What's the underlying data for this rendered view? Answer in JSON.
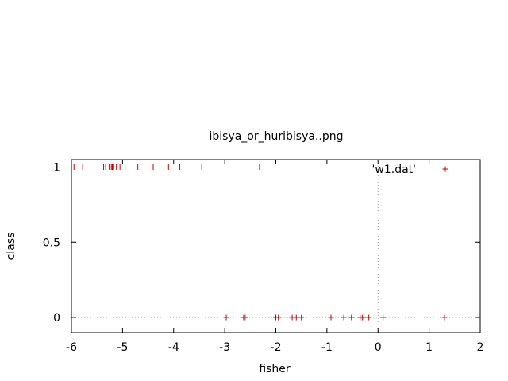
{
  "chart_data": {
    "type": "scatter",
    "title": "ibisya_or_huribisya..png",
    "xlabel": "fisher",
    "ylabel": "class",
    "xlim": [
      -6,
      2
    ],
    "ylim": [
      -0.1,
      1.05
    ],
    "xticks": [
      -6,
      -5,
      -4,
      -3,
      -2,
      -1,
      0,
      1,
      2
    ],
    "xtick_labels": [
      "-6",
      "-5",
      "-4",
      "-3",
      "-2",
      "-1",
      "0",
      "1",
      "2"
    ],
    "yticks": [
      0,
      0.5,
      1
    ],
    "ytick_labels": [
      "0",
      "0.5",
      "1"
    ],
    "grid": false,
    "zero_axes_dotted": true,
    "legend_position": "top-right",
    "colors": {
      "series": "#cc0000",
      "zero_axis": "#a0a0a0"
    },
    "series": [
      {
        "name": "'w1.dat'",
        "marker": "plus",
        "points": [
          [
            -5.95,
            1
          ],
          [
            -5.78,
            1
          ],
          [
            -5.37,
            1
          ],
          [
            -5.33,
            1
          ],
          [
            -5.26,
            1
          ],
          [
            -5.22,
            1
          ],
          [
            -5.2,
            1
          ],
          [
            -5.18,
            1
          ],
          [
            -5.12,
            1
          ],
          [
            -5.05,
            1
          ],
          [
            -4.95,
            1
          ],
          [
            -4.7,
            1
          ],
          [
            -4.4,
            1
          ],
          [
            -4.1,
            1
          ],
          [
            -3.88,
            1
          ],
          [
            -3.45,
            1
          ],
          [
            -2.32,
            1
          ],
          [
            -2.97,
            0
          ],
          [
            -2.63,
            0
          ],
          [
            -2.6,
            0
          ],
          [
            -2.0,
            0
          ],
          [
            -1.95,
            0
          ],
          [
            -1.68,
            0
          ],
          [
            -1.6,
            0
          ],
          [
            -1.5,
            0
          ],
          [
            -0.92,
            0
          ],
          [
            -0.67,
            0
          ],
          [
            -0.52,
            0
          ],
          [
            -0.35,
            0
          ],
          [
            -0.31,
            0
          ],
          [
            -0.28,
            0
          ],
          [
            -0.18,
            0
          ],
          [
            0.1,
            0
          ],
          [
            1.3,
            0
          ]
        ]
      }
    ]
  }
}
